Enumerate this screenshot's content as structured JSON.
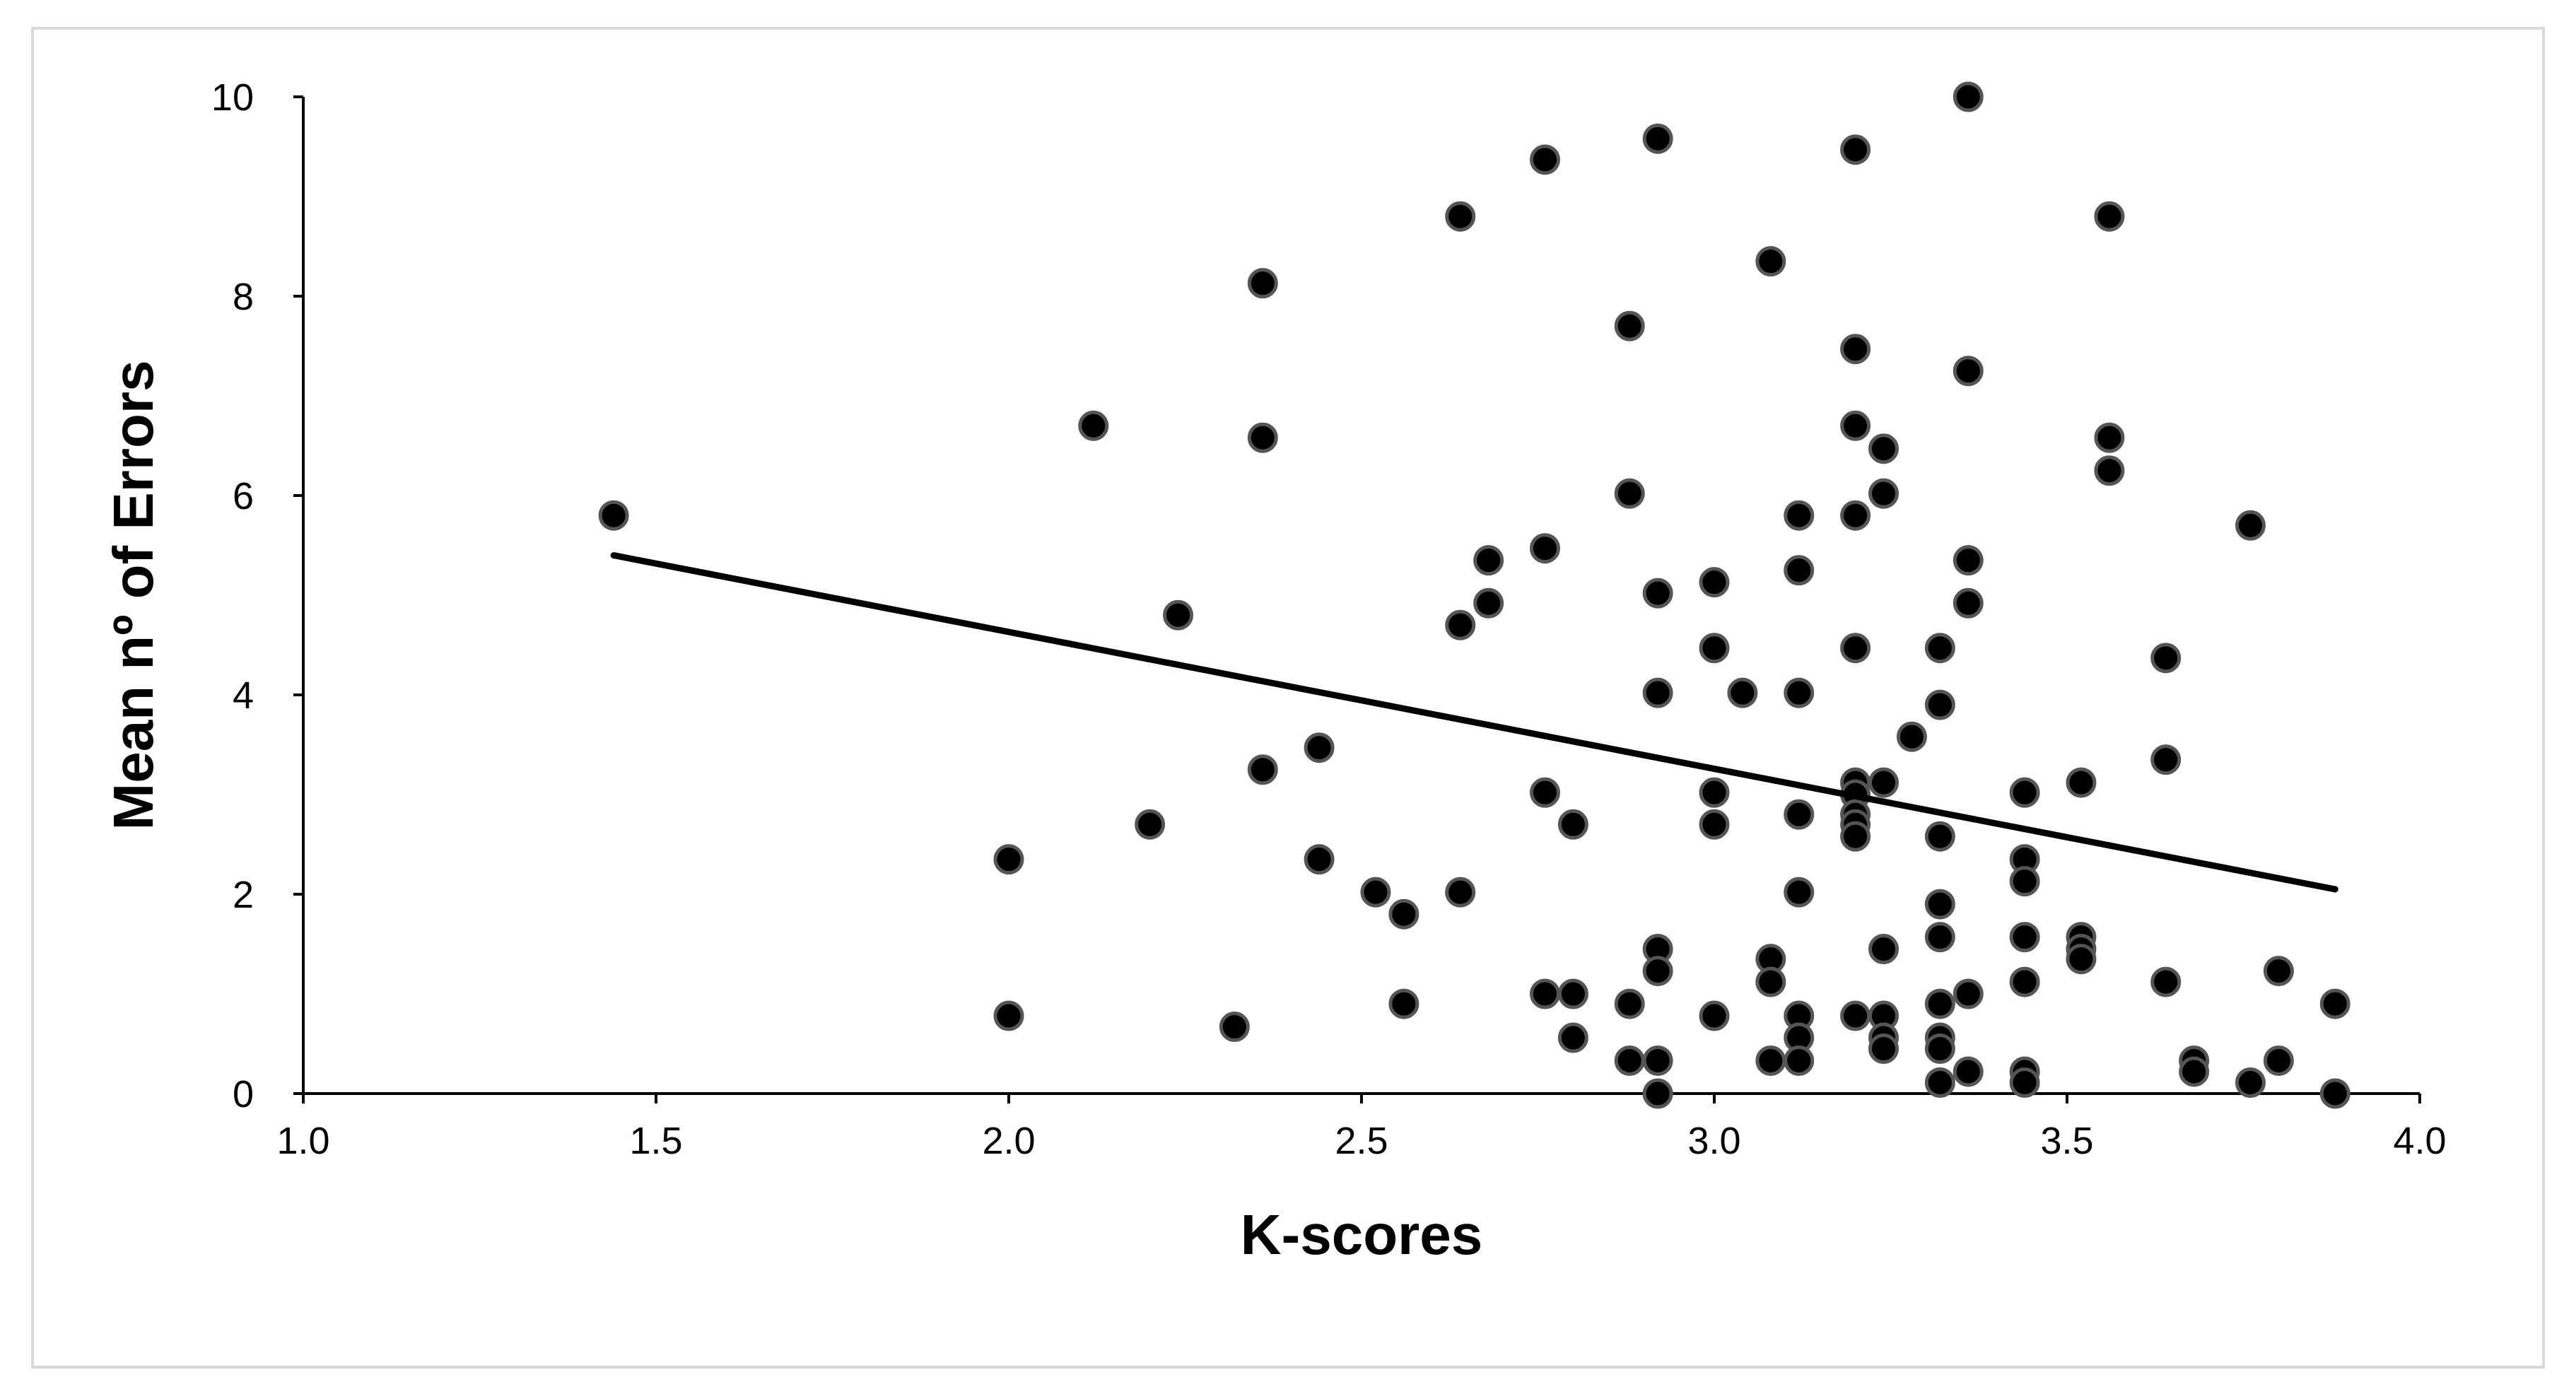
{
  "chart_data": {
    "type": "scatter",
    "title": "",
    "xlabel": "K-scores",
    "ylabel": "Mean nº of Errors",
    "xlim": [
      1.0,
      4.0
    ],
    "ylim": [
      0,
      10
    ],
    "x_ticks": [
      "1.0",
      "1.5",
      "2.0",
      "2.5",
      "3.0",
      "3.5",
      "4.0"
    ],
    "y_ticks": [
      "0",
      "2",
      "4",
      "6",
      "8",
      "10"
    ],
    "grid": false,
    "legend": "none",
    "colors": {
      "marker": "#000000",
      "marker_edge": "#555555",
      "trendline": "#000000",
      "axis": "#000000",
      "frame": "#d9d9d9"
    },
    "trendline": {
      "type": "linear",
      "x": [
        1.44,
        3.88
      ],
      "y": [
        5.4,
        2.05
      ]
    },
    "points": [
      [
        1.44,
        5.8
      ],
      [
        2.0,
        2.35
      ],
      [
        2.0,
        0.78
      ],
      [
        2.12,
        6.7
      ],
      [
        2.2,
        2.7
      ],
      [
        2.24,
        4.8
      ],
      [
        2.32,
        0.67
      ],
      [
        2.36,
        8.13
      ],
      [
        2.36,
        6.58
      ],
      [
        2.36,
        3.25
      ],
      [
        2.44,
        3.47
      ],
      [
        2.44,
        2.35
      ],
      [
        2.52,
        2.02
      ],
      [
        2.56,
        1.8
      ],
      [
        2.56,
        0.9
      ],
      [
        2.64,
        8.8
      ],
      [
        2.64,
        4.7
      ],
      [
        2.64,
        2.02
      ],
      [
        2.68,
        5.35
      ],
      [
        2.68,
        4.92
      ],
      [
        2.76,
        9.37
      ],
      [
        2.76,
        5.47
      ],
      [
        2.76,
        3.02
      ],
      [
        2.76,
        1.0
      ],
      [
        2.8,
        2.7
      ],
      [
        2.8,
        1.0
      ],
      [
        2.8,
        0.56
      ],
      [
        2.88,
        7.7
      ],
      [
        2.88,
        6.02
      ],
      [
        2.88,
        0.9
      ],
      [
        2.88,
        0.33
      ],
      [
        2.92,
        9.58
      ],
      [
        2.92,
        5.02
      ],
      [
        2.92,
        4.02
      ],
      [
        2.92,
        1.45
      ],
      [
        2.92,
        1.23
      ],
      [
        2.92,
        0.33
      ],
      [
        2.92,
        0.0
      ],
      [
        3.0,
        5.13
      ],
      [
        3.0,
        4.47
      ],
      [
        3.0,
        3.02
      ],
      [
        3.0,
        2.7
      ],
      [
        3.0,
        0.78
      ],
      [
        3.04,
        4.02
      ],
      [
        3.08,
        8.35
      ],
      [
        3.08,
        1.35
      ],
      [
        3.08,
        1.12
      ],
      [
        3.08,
        0.33
      ],
      [
        3.12,
        5.8
      ],
      [
        3.12,
        5.25
      ],
      [
        3.12,
        4.02
      ],
      [
        3.12,
        2.8
      ],
      [
        3.12,
        2.02
      ],
      [
        3.12,
        0.78
      ],
      [
        3.12,
        0.56
      ],
      [
        3.12,
        0.33
      ],
      [
        3.2,
        9.47
      ],
      [
        3.2,
        7.47
      ],
      [
        3.2,
        6.7
      ],
      [
        3.2,
        5.8
      ],
      [
        3.2,
        4.47
      ],
      [
        3.2,
        3.12
      ],
      [
        3.2,
        3.0
      ],
      [
        3.2,
        2.8
      ],
      [
        3.2,
        2.7
      ],
      [
        3.2,
        2.58
      ],
      [
        3.2,
        0.78
      ],
      [
        3.24,
        6.47
      ],
      [
        3.24,
        6.02
      ],
      [
        3.24,
        3.12
      ],
      [
        3.24,
        1.45
      ],
      [
        3.24,
        0.78
      ],
      [
        3.24,
        0.56
      ],
      [
        3.24,
        0.45
      ],
      [
        3.28,
        3.58
      ],
      [
        3.32,
        4.47
      ],
      [
        3.32,
        3.9
      ],
      [
        3.32,
        2.58
      ],
      [
        3.32,
        1.9
      ],
      [
        3.32,
        1.57
      ],
      [
        3.32,
        0.9
      ],
      [
        3.32,
        0.56
      ],
      [
        3.32,
        0.45
      ],
      [
        3.32,
        0.11
      ],
      [
        3.36,
        10.0
      ],
      [
        3.36,
        7.25
      ],
      [
        3.36,
        5.35
      ],
      [
        3.36,
        4.92
      ],
      [
        3.36,
        1.0
      ],
      [
        3.36,
        0.22
      ],
      [
        3.44,
        3.02
      ],
      [
        3.44,
        2.35
      ],
      [
        3.44,
        2.13
      ],
      [
        3.44,
        1.57
      ],
      [
        3.44,
        1.12
      ],
      [
        3.44,
        0.22
      ],
      [
        3.44,
        0.11
      ],
      [
        3.52,
        3.12
      ],
      [
        3.52,
        1.57
      ],
      [
        3.52,
        1.45
      ],
      [
        3.52,
        1.35
      ],
      [
        3.56,
        8.8
      ],
      [
        3.56,
        6.58
      ],
      [
        3.56,
        6.25
      ],
      [
        3.64,
        4.37
      ],
      [
        3.64,
        3.35
      ],
      [
        3.64,
        1.12
      ],
      [
        3.68,
        0.33
      ],
      [
        3.68,
        0.22
      ],
      [
        3.76,
        5.7
      ],
      [
        3.76,
        0.11
      ],
      [
        3.8,
        1.23
      ],
      [
        3.8,
        0.33
      ],
      [
        3.88,
        0.9
      ],
      [
        3.88,
        0.0
      ]
    ]
  }
}
